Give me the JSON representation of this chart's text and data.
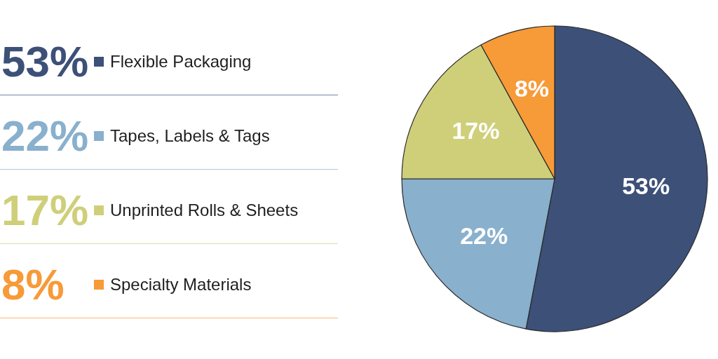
{
  "chart_data": {
    "type": "pie",
    "categories": [
      "Flexible Packaging",
      "Tapes, Labels & Tags",
      "Unprinted Rolls & Sheets",
      "Specialty Materials"
    ],
    "values": [
      53,
      22,
      17,
      8
    ],
    "colors": [
      "#3c5078",
      "#89b0cd",
      "#cfcf7a",
      "#f79a38"
    ],
    "value_labels": [
      "53%",
      "22%",
      "17%",
      "8%"
    ],
    "legend": "left"
  }
}
